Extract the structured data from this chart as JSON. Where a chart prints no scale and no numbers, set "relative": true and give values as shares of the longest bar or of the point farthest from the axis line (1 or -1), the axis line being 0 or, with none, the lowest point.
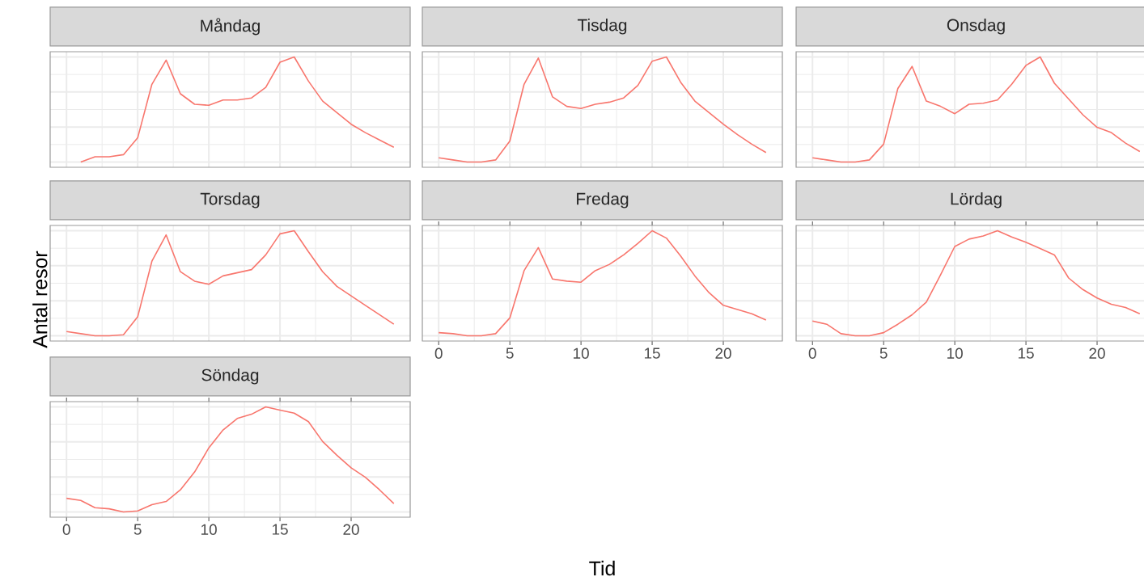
{
  "chart_data": [
    {
      "type": "line",
      "title": "Måndag",
      "categories": [
        null,
        null,
        null,
        null,
        null,
        null,
        null,
        null,
        null,
        null,
        null,
        null,
        null,
        null,
        null,
        null,
        null,
        null,
        null,
        null,
        null,
        null,
        null,
        null
      ],
      "values": [
        null,
        0,
        0.05,
        0.05,
        0.07,
        0.23,
        0.74,
        0.97,
        0.65,
        0.55,
        0.54,
        0.59,
        0.59,
        0.61,
        0.71,
        0.95,
        1,
        0.77,
        0.58,
        0.47,
        0.36,
        0.28,
        0.21,
        0.14
      ],
      "color": "#f8766d",
      "relative": true,
      "grid": true,
      "tick_labels": false
    },
    {
      "type": "line",
      "title": "Tisdag",
      "categories": [
        null,
        null,
        null,
        null,
        null,
        null,
        null,
        null,
        null,
        null,
        null,
        null,
        null,
        null,
        null,
        null,
        null,
        null,
        null,
        null,
        null,
        null,
        null,
        null
      ],
      "values": [
        0.04,
        0.02,
        0,
        0,
        0.02,
        0.2,
        0.74,
        0.99,
        0.62,
        0.53,
        0.51,
        0.55,
        0.57,
        0.61,
        0.73,
        0.96,
        1,
        0.76,
        0.58,
        0.47,
        0.36,
        0.26,
        0.17,
        0.09
      ],
      "color": "#f8766d",
      "relative": true,
      "grid": true,
      "tick_labels": false
    },
    {
      "type": "line",
      "title": "Onsdag",
      "categories": [
        null,
        null,
        null,
        null,
        null,
        null,
        null,
        null,
        null,
        null,
        null,
        null,
        null,
        null,
        null,
        null,
        null,
        null,
        null,
        null,
        null,
        null,
        null,
        null
      ],
      "values": [
        0.04,
        0.02,
        0,
        0,
        0.02,
        0.17,
        0.7,
        0.91,
        0.58,
        0.53,
        0.46,
        0.55,
        0.56,
        0.59,
        0.74,
        0.92,
        1,
        0.75,
        0.6,
        0.45,
        0.33,
        0.28,
        0.18,
        0.1
      ],
      "color": "#f8766d",
      "relative": true,
      "grid": true,
      "tick_labels": false
    },
    {
      "type": "line",
      "title": "Torsdag",
      "ylabel": "Antal resor",
      "categories": [
        null,
        null,
        null,
        null,
        null,
        null,
        null,
        null,
        null,
        null,
        null,
        null,
        null,
        null,
        null,
        null,
        null,
        null,
        null,
        null,
        null,
        null,
        null,
        null
      ],
      "values": [
        0.04,
        0.02,
        0,
        0,
        0.01,
        0.18,
        0.71,
        0.96,
        0.61,
        0.52,
        0.49,
        0.57,
        0.6,
        0.63,
        0.77,
        0.97,
        1,
        0.8,
        0.61,
        0.47,
        0.38,
        0.29,
        0.2,
        0.11
      ],
      "color": "#f8766d",
      "relative": true,
      "grid": true,
      "tick_labels": false
    },
    {
      "type": "line",
      "title": "Fredag",
      "xlabel": "Tid",
      "x": [
        0,
        1,
        2,
        3,
        4,
        5,
        6,
        7,
        8,
        9,
        10,
        11,
        12,
        13,
        14,
        15,
        16,
        17,
        18,
        19,
        20,
        21,
        22,
        23
      ],
      "values": [
        0.03,
        0.02,
        0,
        0,
        0.02,
        0.17,
        0.62,
        0.84,
        0.54,
        0.52,
        0.51,
        0.62,
        0.68,
        0.77,
        0.88,
        1,
        0.93,
        0.76,
        0.57,
        0.41,
        0.29,
        0.25,
        0.21,
        0.15
      ],
      "color": "#f8766d",
      "relative": true,
      "xlim": [
        -1.15,
        24.15
      ],
      "xticks": [
        0,
        5,
        10,
        15,
        20
      ],
      "grid": true,
      "tick_labels": "x"
    },
    {
      "type": "line",
      "title": "Lördag",
      "x": [
        0,
        1,
        2,
        3,
        4,
        5,
        6,
        7,
        8,
        9,
        10,
        11,
        12,
        13,
        14,
        15,
        16,
        17,
        18,
        19,
        20,
        21,
        22,
        23
      ],
      "values": [
        0.14,
        0.11,
        0.02,
        0,
        0,
        0.03,
        0.11,
        0.2,
        0.32,
        0.58,
        0.85,
        0.92,
        0.95,
        1,
        0.94,
        0.89,
        0.83,
        0.77,
        0.55,
        0.44,
        0.36,
        0.3,
        0.27,
        0.21
      ],
      "color": "#f8766d",
      "relative": true,
      "xlim": [
        -1.15,
        24.15
      ],
      "xticks": [
        0,
        5,
        10,
        15,
        20
      ],
      "grid": true,
      "tick_labels": "x"
    },
    {
      "type": "line",
      "title": "Söndag",
      "x": [
        0,
        1,
        2,
        3,
        4,
        5,
        6,
        7,
        8,
        9,
        10,
        11,
        12,
        13,
        14,
        15,
        16,
        17,
        18,
        19,
        20,
        21,
        22,
        23
      ],
      "values": [
        0.13,
        0.11,
        0.04,
        0.03,
        0,
        0.01,
        0.07,
        0.1,
        0.21,
        0.38,
        0.61,
        0.78,
        0.89,
        0.93,
        1,
        0.97,
        0.94,
        0.86,
        0.67,
        0.54,
        0.42,
        0.33,
        0.21,
        0.08
      ],
      "color": "#f8766d",
      "relative": true,
      "xlim": [
        -1.15,
        24.15
      ],
      "xticks": [
        0,
        5,
        10,
        15,
        20
      ],
      "grid": true,
      "tick_labels": "x"
    }
  ]
}
